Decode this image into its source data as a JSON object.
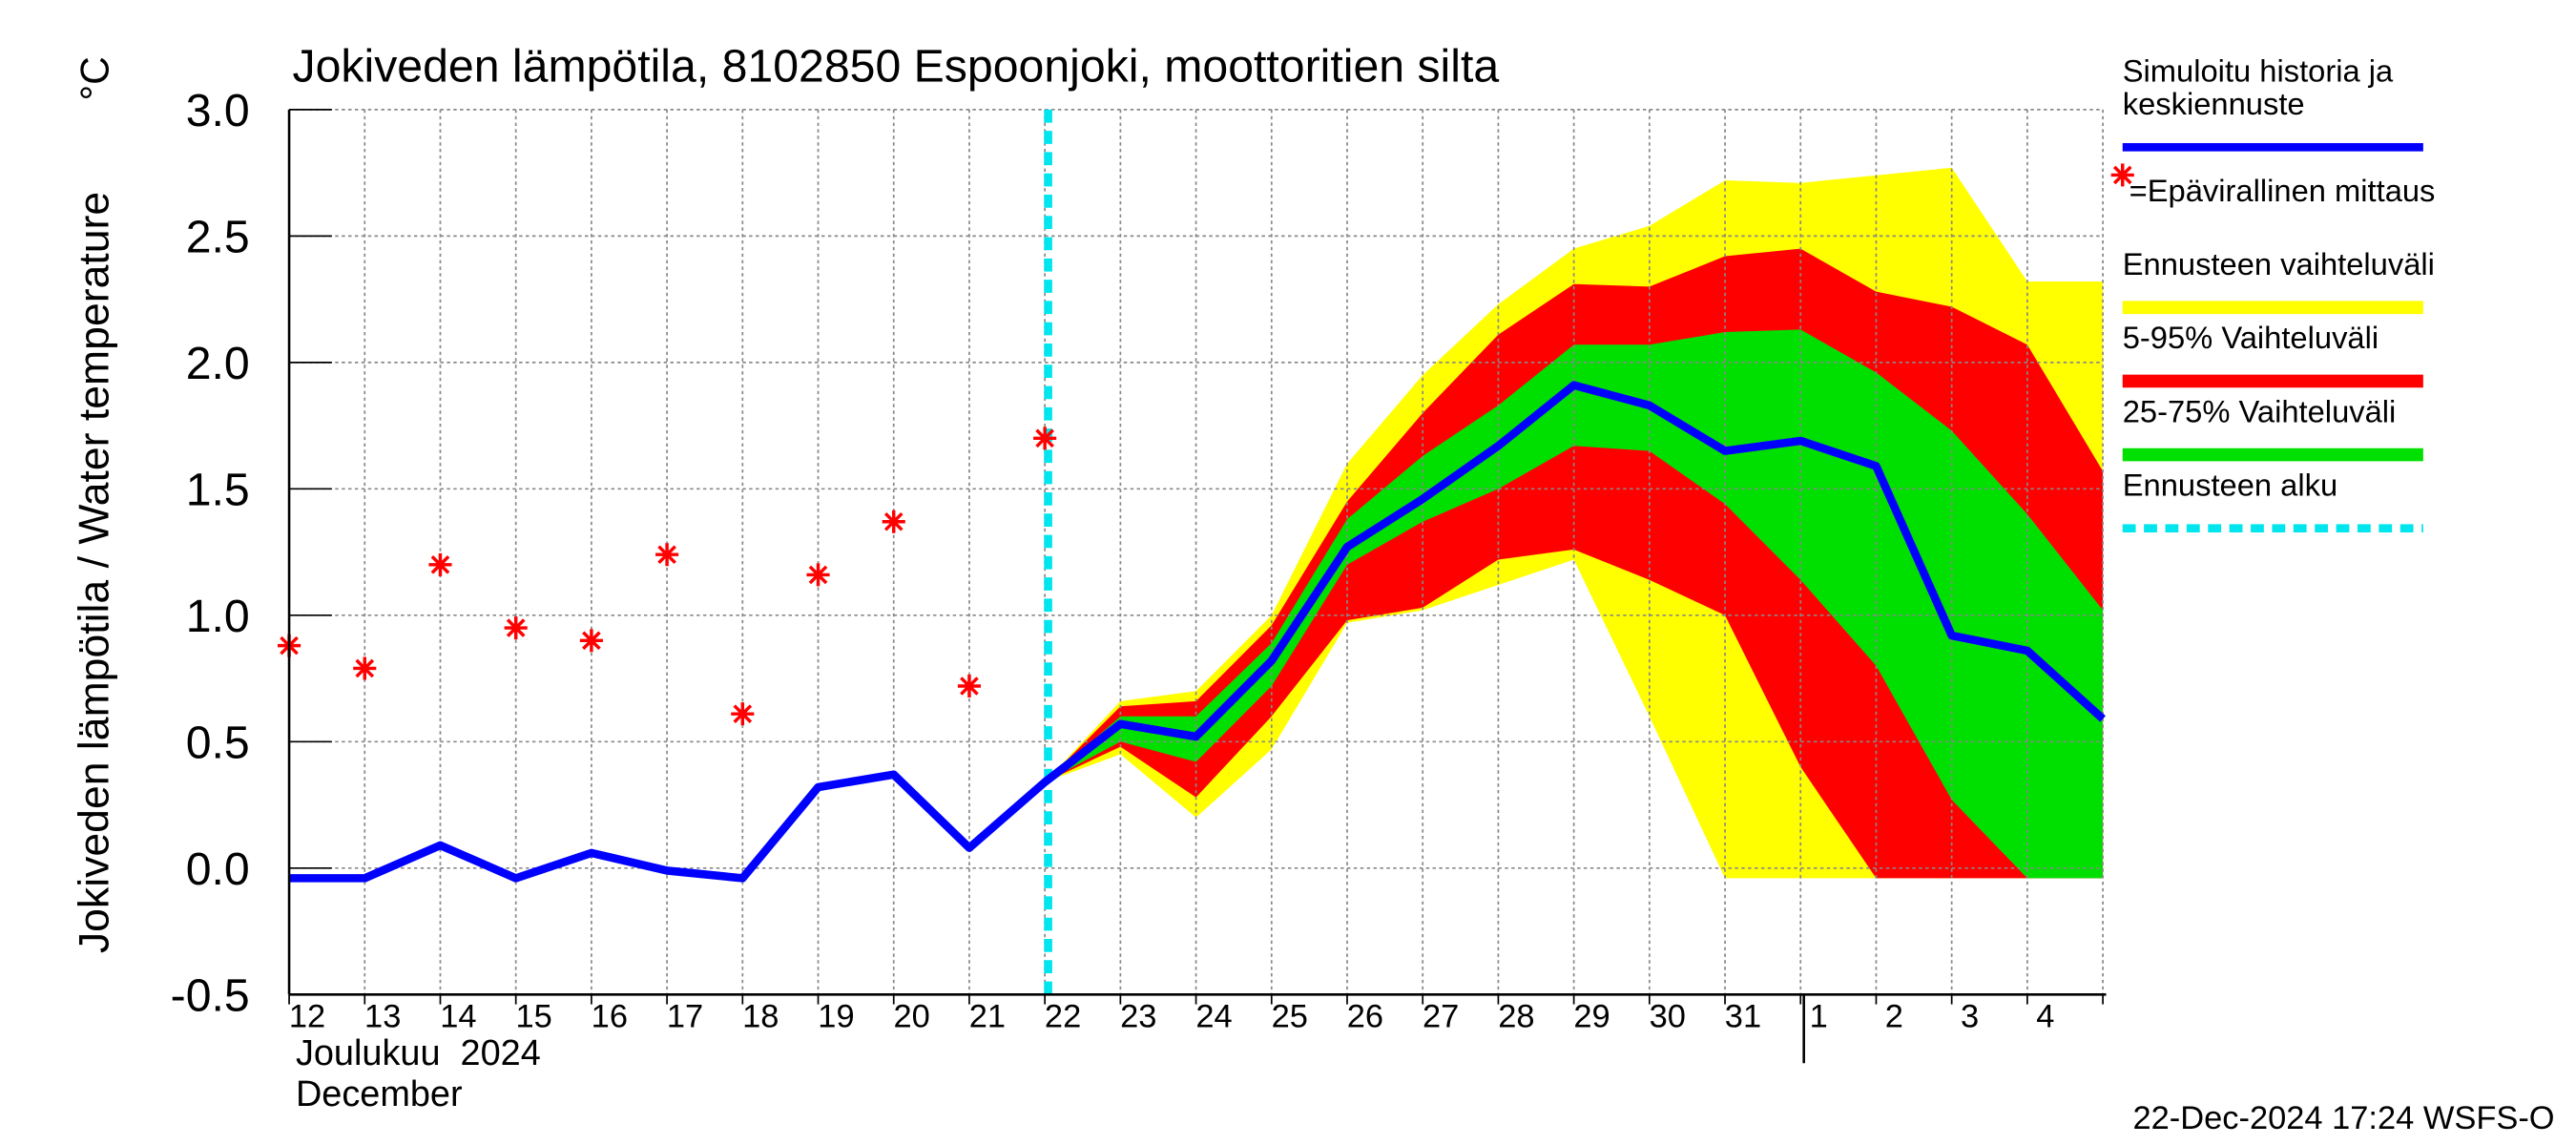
{
  "chart_data": {
    "type": "line",
    "title": "Jokiveden lämpötila, 8102850 Espoonjoki, moottoritien silta",
    "y_label": "Jokiveden lämpötila / Water temperature",
    "y_unit": "°C",
    "x_month_labels": [
      "Joulukuu  2024",
      "December"
    ],
    "timestamp": "22-Dec-2024 17:24 WSFS-O",
    "categories": [
      "12",
      "13",
      "14",
      "15",
      "16",
      "17",
      "18",
      "19",
      "20",
      "21",
      "22",
      "23",
      "24",
      "25",
      "26",
      "27",
      "28",
      "29",
      "30",
      "31",
      "1",
      "2",
      "3",
      "4",
      null
    ],
    "ylim": [
      -0.5,
      3.0
    ],
    "yticks": [
      {
        "value": -0.5,
        "label": "-0.5"
      },
      {
        "value": 0,
        "label": "0.0"
      },
      0.5,
      {
        "value": 1,
        "label": "1.0"
      },
      1.5,
      {
        "value": 2,
        "label": "2.0"
      },
      2.5,
      {
        "value": 3,
        "label": "3.0"
      }
    ],
    "grid": true,
    "legend": "right",
    "series": [
      {
        "name": [
          "Simuloitu historia ja",
          "keskiennuste"
        ],
        "type": "line",
        "color": "#0000ff",
        "values": [
          -0.04,
          -0.04,
          0.09,
          -0.04,
          0.06,
          -0.01,
          -0.04,
          0.32,
          0.37,
          0.08,
          0.34,
          0.57,
          0.52,
          0.82,
          1.27,
          1.46,
          1.67,
          1.91,
          1.83,
          1.65,
          1.69,
          1.59,
          0.92,
          0.86,
          0.59
        ]
      },
      {
        "name": "=Epävirallinen mittaus",
        "type": "star",
        "color": "#ff0000",
        "values": [
          0.88,
          0.79,
          1.2,
          0.95,
          0.9,
          1.24,
          0.61,
          1.16,
          1.37,
          0.72,
          1.7,
          null,
          null,
          null,
          null,
          null,
          null,
          null,
          null,
          null,
          null,
          null,
          null,
          null,
          null
        ]
      },
      {
        "name": "Ennusteen vaihteluväli",
        "type": "band",
        "color": "#ffff00",
        "low": [
          null,
          null,
          null,
          null,
          null,
          null,
          null,
          null,
          null,
          null,
          0.34,
          0.45,
          0.2,
          0.47,
          0.97,
          1.02,
          1.12,
          1.22,
          0.6,
          -0.04,
          -0.04,
          -0.04,
          -0.04,
          -0.04,
          -0.04
        ],
        "high": [
          null,
          null,
          null,
          null,
          null,
          null,
          null,
          null,
          null,
          null,
          0.34,
          0.66,
          0.7,
          1.0,
          1.6,
          1.95,
          2.23,
          2.45,
          2.54,
          2.72,
          2.71,
          2.74,
          2.77,
          2.32,
          2.32
        ]
      },
      {
        "name": "5-95% Vaihteluväli",
        "type": "band",
        "color": "#ff0000",
        "low": [
          null,
          null,
          null,
          null,
          null,
          null,
          null,
          null,
          null,
          null,
          0.34,
          0.48,
          0.28,
          0.6,
          0.98,
          1.03,
          1.22,
          1.26,
          1.14,
          1.0,
          0.4,
          -0.04,
          -0.04,
          -0.04,
          -0.04
        ],
        "high": [
          null,
          null,
          null,
          null,
          null,
          null,
          null,
          null,
          null,
          null,
          0.34,
          0.64,
          0.66,
          0.96,
          1.45,
          1.8,
          2.11,
          2.31,
          2.3,
          2.42,
          2.45,
          2.28,
          2.22,
          2.07,
          1.57
        ]
      },
      {
        "name": "25-75% Vaihteluväli",
        "type": "band",
        "color": "#00e000",
        "low": [
          null,
          null,
          null,
          null,
          null,
          null,
          null,
          null,
          null,
          null,
          0.34,
          0.5,
          0.42,
          0.72,
          1.2,
          1.37,
          1.5,
          1.67,
          1.65,
          1.44,
          1.14,
          0.8,
          0.27,
          -0.04,
          -0.04
        ],
        "high": [
          null,
          null,
          null,
          null,
          null,
          null,
          null,
          null,
          null,
          null,
          0.34,
          0.6,
          0.6,
          0.89,
          1.38,
          1.63,
          1.83,
          2.07,
          2.07,
          2.12,
          2.13,
          1.96,
          1.73,
          1.4,
          1.02
        ]
      }
    ],
    "forecast_start": {
      "name": "Ennusteen alku",
      "color": "#00e5ee",
      "category": "22"
    }
  }
}
